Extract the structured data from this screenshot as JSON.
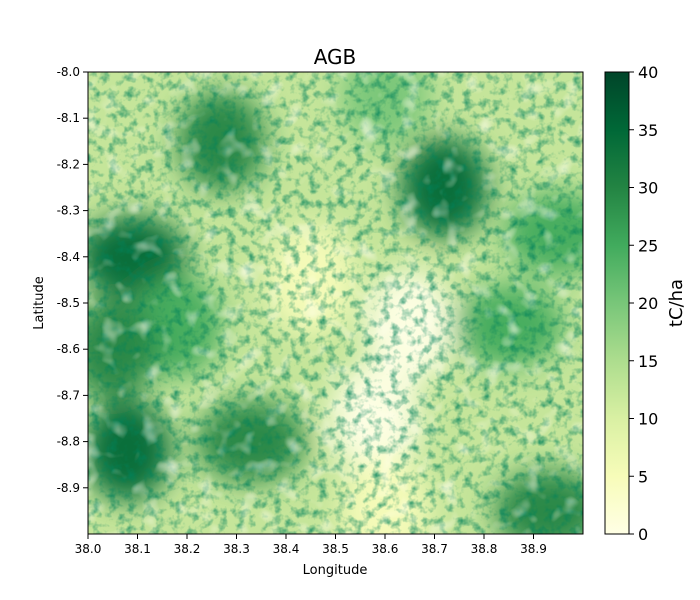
{
  "chart_data": {
    "type": "heatmap",
    "title": "AGB",
    "xlabel": "Longitude",
    "ylabel": "Latitude",
    "xlim": [
      38.0,
      39.0
    ],
    "ylim": [
      -9.0,
      -8.0
    ],
    "x_ticks": [
      "38.0",
      "38.1",
      "38.2",
      "38.3",
      "38.4",
      "38.5",
      "38.6",
      "38.7",
      "38.8",
      "38.9"
    ],
    "y_ticks": [
      "-8.0",
      "-8.1",
      "-8.2",
      "-8.3",
      "-8.4",
      "-8.5",
      "-8.6",
      "-8.7",
      "-8.8",
      "-8.9"
    ],
    "colorbar": {
      "label": "tC/ha",
      "range": [
        0,
        40
      ],
      "ticks": [
        "0",
        "5",
        "10",
        "15",
        "20",
        "25",
        "30",
        "35",
        "40"
      ],
      "colormap": "YlGn",
      "colors": [
        "#ffffe5",
        "#f7fcb9",
        "#d9f0a3",
        "#addd8e",
        "#78c679",
        "#41ab5d",
        "#238443",
        "#006837",
        "#004529"
      ]
    },
    "high_regions": [
      {
        "lon": 38.72,
        "lat": -8.25,
        "value": 36
      },
      {
        "lon": 38.09,
        "lat": -8.4,
        "value": 34
      },
      {
        "lon": 38.08,
        "lat": -8.82,
        "value": 35
      },
      {
        "lon": 38.33,
        "lat": -8.8,
        "value": 32
      },
      {
        "lon": 38.27,
        "lat": -8.15,
        "value": 30
      },
      {
        "lon": 38.85,
        "lat": -8.55,
        "value": 27
      },
      {
        "lon": 38.18,
        "lat": -8.55,
        "value": 24
      },
      {
        "lon": 38.95,
        "lat": -8.35,
        "value": 24
      },
      {
        "lon": 38.05,
        "lat": -8.6,
        "value": 28
      },
      {
        "lon": 38.93,
        "lat": -8.95,
        "value": 30
      },
      {
        "lon": 38.6,
        "lat": -8.05,
        "value": 22
      }
    ],
    "low_regions": [
      {
        "lon": 38.65,
        "lat": -8.55,
        "value": 2
      },
      {
        "lon": 38.58,
        "lat": -8.75,
        "value": 1
      },
      {
        "lon": 38.45,
        "lat": -8.45,
        "value": 4
      },
      {
        "lon": 38.6,
        "lat": -8.95,
        "value": 4
      }
    ]
  }
}
